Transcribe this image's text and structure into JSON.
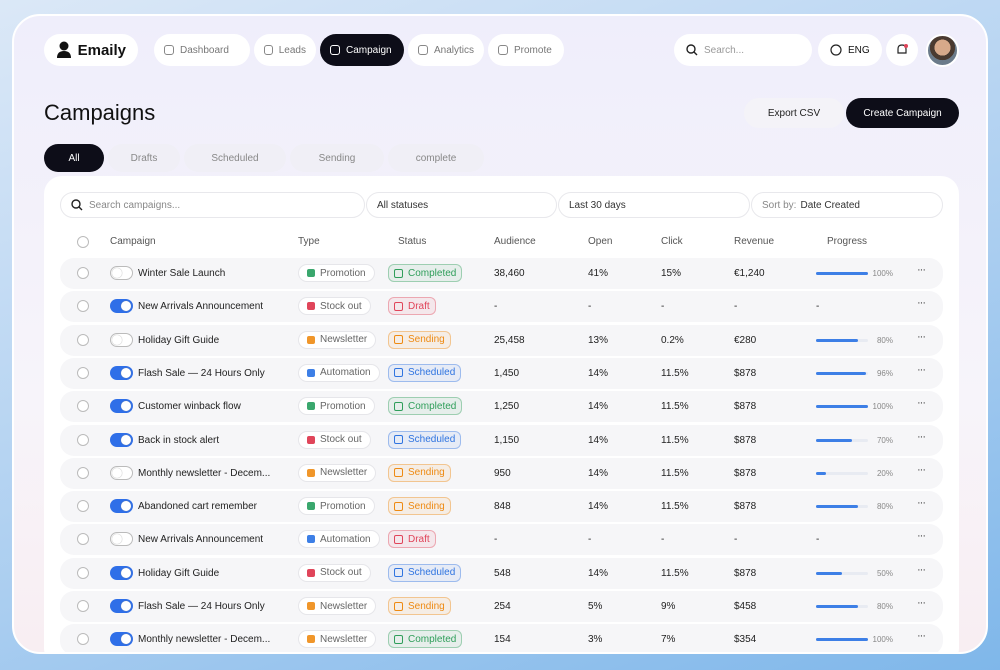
{
  "header": {
    "brand": "Emaily",
    "nav": [
      "Dashboard",
      "Leads",
      "Campaign",
      "Analytics",
      "Promote"
    ],
    "active_nav": 2,
    "search": "Search...",
    "language": "ENG"
  },
  "page": {
    "title": "Campaigns",
    "export": "Export CSV",
    "create": "Create Campaign",
    "tabs": [
      "All",
      "Drafts",
      "Scheduled",
      "Sending",
      "complete"
    ],
    "active_tab": 0
  },
  "filters": {
    "search": "Search campaigns...",
    "status": "All statuses",
    "range": "Last 30 days",
    "sort_label": "Sort by:",
    "sort_value": "Date Created"
  },
  "table": {
    "columns": [
      "Campaign",
      "Type",
      "Status",
      "Audience",
      "Open",
      "Click",
      "Revenue",
      "Progress"
    ],
    "rows": [
      {
        "enabled": false,
        "name": "Winter Sale Launch",
        "type": "Promotion",
        "type_color": "#3aa76d",
        "status": "Completed",
        "status_color": "#2f9e5a",
        "audience": "38,460",
        "open": "41%",
        "click": "15%",
        "revenue": "€1,240",
        "progress": {
          "value": 100,
          "label": "100%"
        }
      },
      {
        "enabled": true,
        "name": "New Arrivals Announcement",
        "type": "Stock out",
        "type_color": "#e0455a",
        "status": "Draft",
        "status_color": "#e0455a",
        "audience": "-",
        "open": "-",
        "click": "-",
        "revenue": "-",
        "progress": "-"
      },
      {
        "enabled": false,
        "name": "Holiday Gift Guide",
        "type": "Newsletter",
        "type_color": "#f0962a",
        "status": "Sending",
        "status_color": "#ee8a12",
        "audience": "25,458",
        "open": "13%",
        "click": "0.2%",
        "revenue": "€280",
        "progress": {
          "value": 80,
          "label": "80%"
        }
      },
      {
        "enabled": true,
        "name": "Flash Sale — 24 Hours Only",
        "type": "Automation",
        "type_color": "#3d7fe6",
        "status": "Scheduled",
        "status_color": "#2f74e0",
        "audience": "1,450",
        "open": "14%",
        "click": "11.5%",
        "revenue": "$878",
        "progress": {
          "value": 96,
          "label": "96%"
        }
      },
      {
        "enabled": true,
        "name": "Customer winback flow",
        "type": "Promotion",
        "type_color": "#3aa76d",
        "status": "Completed",
        "status_color": "#2f9e5a",
        "audience": "1,250",
        "open": "14%",
        "click": "11.5%",
        "revenue": "$878",
        "progress": {
          "value": 100,
          "label": "100%"
        }
      },
      {
        "enabled": true,
        "name": "Back in stock alert",
        "type": "Stock out",
        "type_color": "#e0455a",
        "status": "Scheduled",
        "status_color": "#2f74e0",
        "audience": "1,150",
        "open": "14%",
        "click": "11.5%",
        "revenue": "$878",
        "progress": {
          "value": 70,
          "label": "70%"
        }
      },
      {
        "enabled": false,
        "name": "Monthly newsletter - Decem...",
        "type": "Newsletter",
        "type_color": "#f0962a",
        "status": "Sending",
        "status_color": "#ee8a12",
        "audience": "950",
        "open": "14%",
        "click": "11.5%",
        "revenue": "$878",
        "progress": {
          "value": 20,
          "label": "20%"
        }
      },
      {
        "enabled": true,
        "name": "Abandoned cart remember",
        "type": "Promotion",
        "type_color": "#3aa76d",
        "status": "Sending",
        "status_color": "#ee8a12",
        "audience": "848",
        "open": "14%",
        "click": "11.5%",
        "revenue": "$878",
        "progress": {
          "value": 80,
          "label": "80%"
        }
      },
      {
        "enabled": false,
        "name": "New Arrivals Announcement",
        "type": "Automation",
        "type_color": "#3d7fe6",
        "status": "Draft",
        "status_color": "#e0455a",
        "audience": "-",
        "open": "-",
        "click": "-",
        "revenue": "-",
        "progress": "-"
      },
      {
        "enabled": true,
        "name": "Holiday Gift Guide",
        "type": "Stock out",
        "type_color": "#e0455a",
        "status": "Scheduled",
        "status_color": "#2f74e0",
        "audience": "548",
        "open": "14%",
        "click": "11.5%",
        "revenue": "$878",
        "progress": {
          "value": 50,
          "label": "50%"
        }
      },
      {
        "enabled": true,
        "name": "Flash Sale — 24 Hours Only",
        "type": "Newsletter",
        "type_color": "#f0962a",
        "status": "Sending",
        "status_color": "#ee8a12",
        "audience": "254",
        "open": "5%",
        "click": "9%",
        "revenue": "$458",
        "progress": {
          "value": 80,
          "label": "80%"
        }
      },
      {
        "enabled": true,
        "name": "Monthly newsletter - Decem...",
        "type": "Newsletter",
        "type_color": "#f0962a",
        "status": "Completed",
        "status_color": "#2f9e5a",
        "audience": "154",
        "open": "3%",
        "click": "7%",
        "revenue": "$354",
        "progress": {
          "value": 100,
          "label": "100%"
        }
      }
    ]
  }
}
